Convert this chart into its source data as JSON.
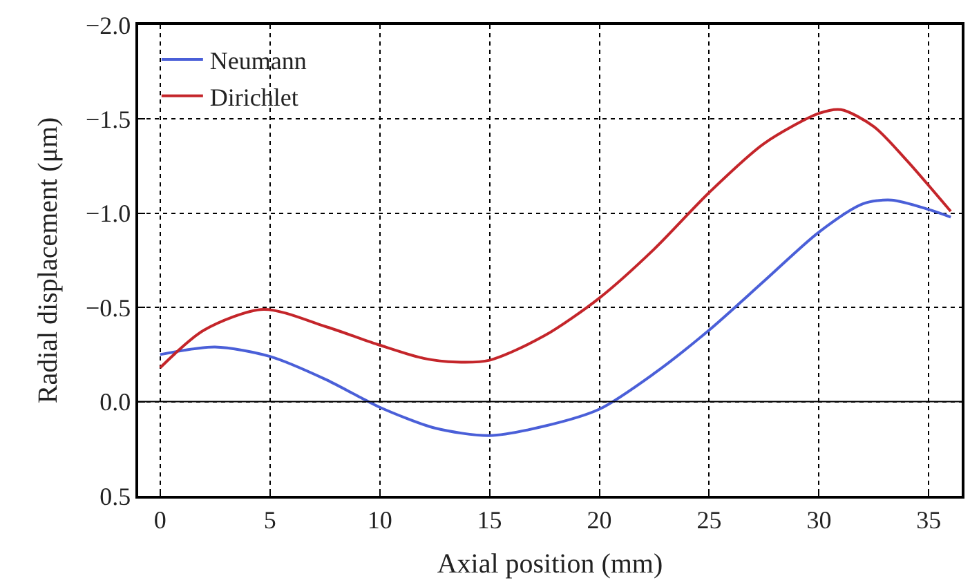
{
  "chart_data": {
    "type": "line",
    "xlabel": "Axial position (mm)",
    "ylabel": "Radial displacement (μm)",
    "xlim": [
      -1,
      36.5
    ],
    "xticks": [
      0,
      5,
      10,
      15,
      20,
      25,
      30,
      35
    ],
    "ylim": [
      0.5,
      -2.0
    ],
    "yticks": [
      {
        "value": -2.0,
        "label": "−2.0"
      },
      {
        "value": -1.5,
        "label": "−1.5"
      },
      {
        "value": -1.0,
        "label": "−1.0"
      },
      {
        "value": -0.5,
        "label": "−0.5"
      },
      {
        "value": 0.0,
        "label": "0.0"
      },
      {
        "value": 0.5,
        "label": "0.5"
      }
    ],
    "grid": true,
    "legend": "top left",
    "line_style": "solid",
    "ref_lines": [
      {
        "axis": "y",
        "value": 0,
        "color": "#000000"
      }
    ],
    "series": [
      {
        "name": "Neumann",
        "color": "#4a5fd8",
        "x": [
          0,
          2.5,
          5,
          7.5,
          9,
          10,
          12.5,
          15,
          17.5,
          20,
          22.5,
          25,
          27.5,
          30,
          32,
          33.3,
          35,
          36
        ],
        "values": [
          -0.25,
          -0.29,
          -0.24,
          -0.12,
          -0.03,
          0.03,
          0.14,
          0.18,
          0.13,
          0.04,
          -0.15,
          -0.38,
          -0.64,
          -0.9,
          -1.05,
          -1.07,
          -1.02,
          -0.98
        ]
      },
      {
        "name": "Dirichlet",
        "color": "#c4252a",
        "x": [
          0,
          2,
          4.7,
          7.5,
          10,
          12,
          13.5,
          15,
          17.5,
          20,
          22.5,
          25,
          27.5,
          30,
          31,
          32.5,
          34,
          36
        ],
        "values": [
          -0.18,
          -0.38,
          -0.49,
          -0.4,
          -0.3,
          -0.23,
          -0.21,
          -0.22,
          -0.35,
          -0.55,
          -0.81,
          -1.11,
          -1.37,
          -1.53,
          -1.55,
          -1.46,
          -1.28,
          -1.01
        ]
      }
    ]
  }
}
